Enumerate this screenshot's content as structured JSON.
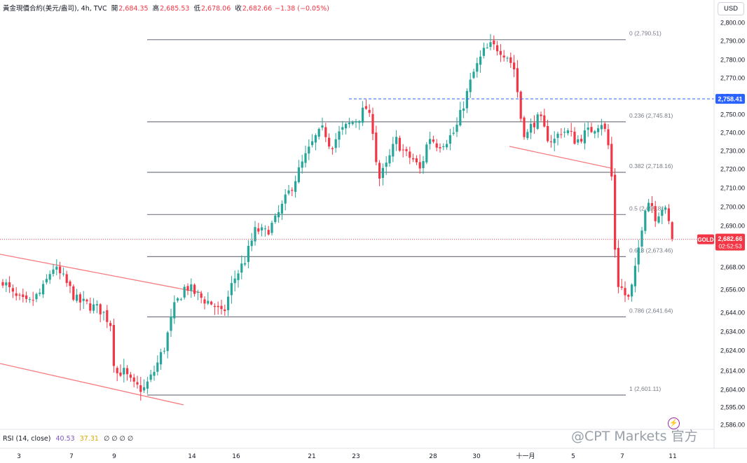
{
  "header": {
    "title": "黃金現價合約(美元/盎司), 4h, TVC",
    "open_label": "開",
    "open": "2,684.35",
    "high_label": "高",
    "high": "2,685.53",
    "low_label": "低",
    "low": "2,678.06",
    "close_label": "收",
    "close": "2,682.66",
    "change": "−1.38 (−0.05%)"
  },
  "currency_button": "USD",
  "indicator": {
    "name": "RSI (14, close)",
    "value1": "40.53",
    "value2": "37.31",
    "values_rest": "∅ ∅ ∅ ∅"
  },
  "watermark": "@CPT Markets 官方",
  "chart_data": {
    "type": "candlestick",
    "y_ticks": [
      "2,800.00",
      "2,790.00",
      "2,780.00",
      "2,770.00",
      "2,760.00",
      "2,750.00",
      "2,740.00",
      "2,730.00",
      "2,720.00",
      "2,710.00",
      "2,700.00",
      "2,690.00",
      "2,668.00",
      "2,656.00",
      "2,644.00",
      "2,634.00",
      "2,624.00",
      "2,614.00",
      "2,604.00",
      "2,595.00",
      "2,586.00"
    ],
    "x_ticks": [
      "3",
      "7",
      "9",
      "14",
      "16",
      "21",
      "23",
      "28",
      "30",
      "十一月",
      "5",
      "7",
      "11"
    ],
    "fib_levels": [
      {
        "ratio": "0",
        "value": 2790.51,
        "label": "0 (2,790.51)"
      },
      {
        "ratio": "0.236",
        "value": 2745.81,
        "label": "0.236 (2,745.81)"
      },
      {
        "ratio": "0.382",
        "value": 2718.16,
        "label": "0.382 (2,718.16)"
      },
      {
        "ratio": "0.5",
        "value": 2695.81,
        "label": "0.5 (2,695.81)"
      },
      {
        "ratio": "0.618",
        "value": 2673.46,
        "label": "0.618 (2,673.46)"
      },
      {
        "ratio": "0.786",
        "value": 2641.64,
        "label": "0.786 (2,641.64)"
      },
      {
        "ratio": "1",
        "value": 2601.11,
        "label": "1 (2,601.11)"
      }
    ],
    "price_tag": {
      "symbol": "GOLD",
      "value": "2,682.66",
      "countdown": "02:52:53",
      "price": 2682.66
    },
    "horizontal_line": {
      "value": 2758.41,
      "label": "2,758.41"
    },
    "colors": {
      "up": "#26a69a",
      "down": "#f23645",
      "fib": "#787b86",
      "trend": "#f77c80",
      "hline": "#2962ff"
    },
    "candles_ohlc_anchor": {
      "first_close": 2661.0,
      "last_close": 2682.66,
      "low": 2601.11,
      "high": 2790.51
    }
  }
}
